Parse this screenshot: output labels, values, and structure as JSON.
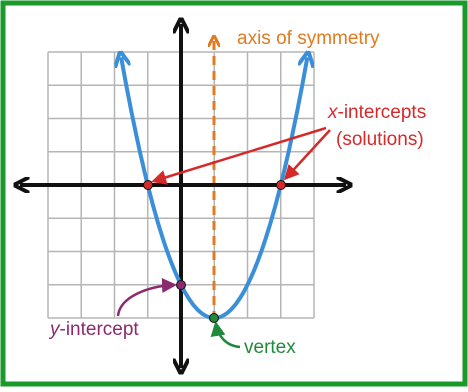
{
  "axis_label": "axis of symmetry",
  "x_intercepts": {
    "variable": "x",
    "text": "-intercepts",
    "line2": "(solutions)"
  },
  "y_intercept": {
    "variable": "y",
    "text": "-intercept"
  },
  "vertex_label": "vertex"
}
